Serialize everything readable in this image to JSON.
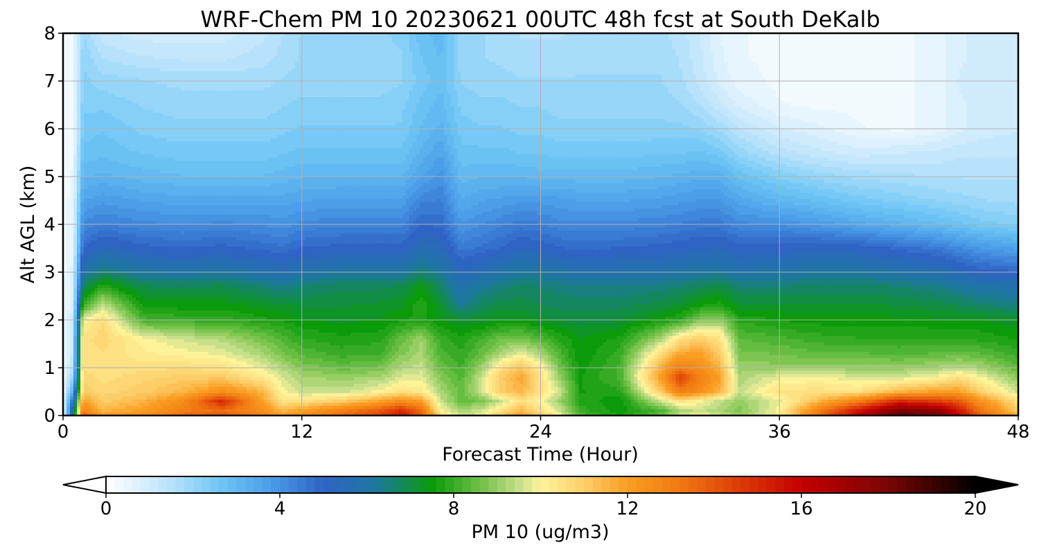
{
  "chart_data": {
    "type": "heatmap",
    "title": "WRF-Chem PM 10  20230621 00UTC 48h fcst at South DeKalb",
    "xlabel": "Forecast Time (Hour)",
    "ylabel": "Alt AGL (km)",
    "xlim": [
      0,
      48
    ],
    "ylim": [
      0,
      8
    ],
    "x_ticks": [
      "0",
      "12",
      "24",
      "36",
      "48"
    ],
    "x_tick_values": [
      0,
      12,
      24,
      36,
      48
    ],
    "y_ticks": [
      "0",
      "1",
      "2",
      "3",
      "4",
      "5",
      "6",
      "7",
      "8"
    ],
    "y_tick_values": [
      0,
      1,
      2,
      3,
      4,
      5,
      6,
      7,
      8
    ],
    "grid": true,
    "x": [
      0,
      0.5,
      1,
      2,
      4,
      6,
      8,
      10,
      11,
      12,
      14,
      16,
      17,
      18,
      19,
      20,
      21,
      22,
      23,
      24,
      25,
      26,
      28,
      30,
      31,
      32,
      33,
      34,
      36,
      38,
      40,
      42,
      44,
      45,
      46,
      48
    ],
    "y": [
      0,
      0.1,
      0.3,
      0.5,
      0.8,
      1.0,
      1.3,
      1.6,
      2.0,
      2.3,
      2.7,
      3.0,
      3.5,
      4.0,
      4.5,
      5.0,
      5.5,
      6.0,
      6.5,
      7.0,
      7.5,
      8.0
    ],
    "z": [
      [
        0.5,
        6,
        14,
        12,
        12.5,
        13.5,
        14,
        13,
        12,
        12.5,
        13.5,
        14.5,
        15.5,
        14,
        10.5,
        9.5,
        9.8,
        11,
        12,
        11,
        10,
        8.3,
        7.6,
        8.5,
        9.5,
        10,
        9.5,
        9,
        10,
        13.5,
        16,
        18.5,
        18,
        16,
        14,
        11.5
      ],
      [
        0.5,
        6,
        13,
        11.5,
        12,
        13,
        13.5,
        12.5,
        11.5,
        12,
        13,
        14,
        15,
        13.5,
        10,
        9.2,
        9.5,
        10.5,
        11.5,
        10.5,
        9.5,
        8,
        7.5,
        8.2,
        9.2,
        9.5,
        9.2,
        8.8,
        10,
        13,
        15.5,
        18,
        17.5,
        15.5,
        13.5,
        11
      ],
      [
        0.4,
        5,
        12,
        11,
        11.5,
        12.5,
        15,
        12,
        10.5,
        10.5,
        11,
        12,
        12.5,
        12,
        9.5,
        8.5,
        8.7,
        9.5,
        10.5,
        10,
        9,
        7.8,
        7.4,
        9.5,
        10.5,
        10,
        9.5,
        9,
        9.8,
        11.5,
        13,
        15,
        14.5,
        14,
        12.5,
        10.5
      ],
      [
        0.3,
        3.5,
        11,
        10.8,
        11,
        11.5,
        12.5,
        11.5,
        10,
        9.5,
        9.5,
        10,
        10.5,
        10.3,
        9.2,
        8.5,
        9.5,
        11,
        11.5,
        10.5,
        9.5,
        7.6,
        7.8,
        11,
        13,
        12.5,
        11.5,
        9.5,
        10.5,
        10.5,
        10.5,
        11.5,
        12,
        12,
        11,
        9.5
      ],
      [
        0.3,
        2,
        10.8,
        10.5,
        10.8,
        11,
        11,
        10.3,
        9.7,
        9.2,
        9,
        9.2,
        9.7,
        9.8,
        8.8,
        8.3,
        9.5,
        11,
        11.8,
        10.5,
        9,
        7.6,
        8.2,
        12,
        14.5,
        13,
        12,
        9.2,
        9.8,
        10,
        9.6,
        9.6,
        10,
        10.5,
        10,
        8.9
      ],
      [
        0.3,
        1.5,
        10.5,
        10.5,
        10.5,
        10.6,
        10.5,
        9.8,
        9.3,
        8.8,
        8.5,
        8.7,
        9.3,
        9.5,
        8.5,
        8.1,
        9,
        10.5,
        11.2,
        10.2,
        8.6,
        7.5,
        8.2,
        11.5,
        13,
        12.5,
        11.5,
        9,
        9,
        9,
        9,
        9,
        9.2,
        9.4,
        9.2,
        8.4
      ],
      [
        0.3,
        1.2,
        10.5,
        10.6,
        10.2,
        10,
        9.8,
        9.2,
        8.7,
        8.3,
        8,
        8.1,
        8.8,
        9.2,
        8.2,
        7.9,
        8.5,
        9.2,
        9.8,
        9.2,
        8.2,
        7.4,
        8,
        10.5,
        11.8,
        12,
        11,
        8.7,
        8.6,
        8.4,
        8.4,
        8.3,
        8.4,
        8.5,
        8.4,
        8
      ],
      [
        0.3,
        1.1,
        10.5,
        10.8,
        10,
        9.6,
        9.3,
        8.7,
        8.3,
        7.9,
        7.7,
        7.8,
        8.5,
        9.1,
        8,
        7.7,
        8.1,
        8.6,
        8.7,
        8.3,
        7.8,
        7.4,
        7.7,
        9.2,
        10.5,
        11,
        10.5,
        8.4,
        8.2,
        8,
        7.9,
        7.9,
        7.9,
        7.9,
        7.8,
        7.6
      ],
      [
        0.3,
        1,
        10,
        10.6,
        8.2,
        8,
        8,
        7.7,
        7.6,
        7.4,
        7.3,
        7.4,
        7.6,
        7.7,
        7.4,
        7.2,
        7.2,
        7.4,
        7.4,
        7.2,
        7.1,
        7,
        7.1,
        7.6,
        7.9,
        8.8,
        9,
        7.8,
        7.6,
        7.5,
        7.5,
        7.5,
        7.4,
        7.4,
        7.4,
        7.2
      ],
      [
        0.3,
        0.9,
        8,
        9.5,
        7.6,
        7.5,
        7.5,
        7.3,
        7.2,
        7.1,
        7.1,
        7.2,
        7.3,
        7.8,
        7.2,
        6.3,
        6.8,
        7,
        7,
        6.9,
        6.8,
        6.8,
        6.8,
        7,
        7.2,
        7.6,
        7.8,
        7.2,
        7.2,
        7.2,
        7.2,
        7.1,
        7,
        6.9,
        6.7,
        6.5
      ],
      [
        0.3,
        0.8,
        6.8,
        7.8,
        6.9,
        6.8,
        6.9,
        6.6,
        6.4,
        6.6,
        6.8,
        6.8,
        6.9,
        7.4,
        6.7,
        5.8,
        6.2,
        6.5,
        6.7,
        6.6,
        6.5,
        6.4,
        6.4,
        6.5,
        6.6,
        6.8,
        7,
        6.6,
        6.6,
        6.7,
        6.7,
        6.6,
        6.4,
        6.2,
        6,
        5.8
      ],
      [
        0.3,
        0.7,
        6,
        6.6,
        6.1,
        6,
        6.1,
        5.8,
        5.6,
        5.9,
        6.1,
        6.1,
        6.1,
        6.6,
        6.2,
        5.3,
        5.6,
        5.9,
        6.2,
        6.1,
        6,
        5.8,
        5.8,
        5.9,
        6,
        6.1,
        6.2,
        5.9,
        6,
        6.1,
        6.1,
        5.9,
        5.7,
        5.4,
        5.1,
        4.9
      ],
      [
        0.3,
        0.6,
        4.8,
        5.4,
        5,
        4.9,
        5,
        4.8,
        4.7,
        4.9,
        5,
        5,
        5,
        5.6,
        5.4,
        4.5,
        4.7,
        4.9,
        5.2,
        5.1,
        4.9,
        4.8,
        4.9,
        5,
        5.1,
        5.2,
        5.3,
        5,
        5.1,
        5.2,
        5.1,
        4.8,
        4.5,
        4.2,
        3.9,
        3.6
      ],
      [
        0.3,
        0.5,
        4.2,
        4.4,
        4.2,
        4.1,
        4.2,
        4.1,
        4,
        4.2,
        4.3,
        4.3,
        4.3,
        4.9,
        4.8,
        3.9,
        4.1,
        4.3,
        4.5,
        4.4,
        4.2,
        4.2,
        4.2,
        4.3,
        4.4,
        4.5,
        4.5,
        4.2,
        4.1,
        3.8,
        3.5,
        3.2,
        2.9,
        2.7,
        2.5,
        2.3
      ],
      [
        0.3,
        0.45,
        3.6,
        3.8,
        3.6,
        3.5,
        3.5,
        3.5,
        3.5,
        3.6,
        3.7,
        3.7,
        3.7,
        4.3,
        4.4,
        3.4,
        3.6,
        3.7,
        3.8,
        3.8,
        3.7,
        3.6,
        3.6,
        3.7,
        3.8,
        3.9,
        3.9,
        3.5,
        3.1,
        2.8,
        2.5,
        2.3,
        2.1,
        2,
        1.9,
        1.8
      ],
      [
        0.3,
        0.4,
        3.1,
        3.2,
        3,
        2.9,
        2.9,
        2.9,
        3,
        3.1,
        3.1,
        3.1,
        3.1,
        3.6,
        4,
        3,
        3.1,
        3.1,
        3.1,
        3,
        3,
        3,
        3,
        3.1,
        3.2,
        3.3,
        3.3,
        2.8,
        2.3,
        2,
        1.8,
        1.7,
        1.6,
        1.6,
        1.6,
        1.6
      ],
      [
        0.3,
        0.35,
        2.7,
        2.8,
        2.6,
        2.5,
        2.5,
        2.5,
        2.6,
        2.7,
        2.7,
        2.7,
        2.7,
        3.2,
        3.6,
        2.7,
        2.7,
        2.7,
        2.6,
        2.6,
        2.5,
        2.5,
        2.5,
        2.6,
        2.6,
        2.7,
        2.5,
        2,
        1.5,
        1.2,
        1,
        1.1,
        1.2,
        1.3,
        1.3,
        1.3
      ],
      [
        0.3,
        0.3,
        2.5,
        2.6,
        2.3,
        2.2,
        2.2,
        2.2,
        2.3,
        2.4,
        2.4,
        2.4,
        2.4,
        2.9,
        3.2,
        2.5,
        2.4,
        2.4,
        2.3,
        2.3,
        2.2,
        2.2,
        2.2,
        2.2,
        2.2,
        2.1,
        1.8,
        1.4,
        0.9,
        0.7,
        0.4,
        0.3,
        0.5,
        0.8,
        1,
        1.1
      ],
      [
        0.3,
        0.3,
        2.3,
        2.3,
        2.1,
        2,
        2,
        2,
        2.1,
        2.2,
        2.2,
        2.2,
        2.3,
        2.7,
        3,
        2.3,
        2.2,
        2.2,
        2.1,
        2.1,
        2,
        2,
        2,
        2,
        1.9,
        1.6,
        1.2,
        0.8,
        0.4,
        0.3,
        0.3,
        0.3,
        0.5,
        0.8,
        1,
        1
      ],
      [
        0.3,
        0.3,
        2.2,
        2,
        1.9,
        1.8,
        1.8,
        1.8,
        1.9,
        2,
        2,
        2,
        2.1,
        2.5,
        2.8,
        2.1,
        2,
        2,
        1.9,
        1.9,
        1.9,
        1.9,
        1.9,
        1.9,
        1.7,
        1.3,
        0.8,
        0.5,
        0.3,
        0.2,
        0.2,
        0.3,
        0.5,
        0.9,
        1.1,
        1.1
      ],
      [
        0.3,
        0.3,
        2.1,
        1.6,
        1.4,
        1.3,
        1.3,
        1.5,
        1.7,
        1.9,
        2,
        2,
        2.1,
        2.6,
        2.9,
        2,
        1.9,
        1.8,
        1.7,
        1.7,
        1.7,
        1.8,
        1.8,
        1.8,
        1.6,
        1.2,
        0.7,
        0.4,
        0.3,
        0.2,
        0.2,
        0.3,
        0.5,
        0.8,
        1,
        1
      ],
      [
        0.3,
        0.3,
        1.9,
        1.2,
        1,
        1,
        1,
        1.3,
        1.6,
        1.9,
        2,
        2.1,
        2.2,
        2.8,
        3,
        2,
        1.9,
        1.8,
        1.6,
        1.6,
        1.6,
        1.7,
        1.7,
        1.7,
        1.5,
        1.1,
        0.6,
        0.4,
        0.3,
        0.2,
        0.2,
        0.3,
        0.5,
        0.8,
        1,
        1
      ]
    ],
    "colorbar": {
      "label": "PM 10  (ug/m3)",
      "min": 0,
      "max": 20,
      "ticks": [
        "0",
        "4",
        "8",
        "12",
        "16",
        "20"
      ],
      "tick_values": [
        0,
        4,
        8,
        12,
        16,
        20
      ],
      "extend": "both",
      "color_stops": [
        {
          "v": 0,
          "c": "#ffffff"
        },
        {
          "v": 1.5,
          "c": "#b8e2fb"
        },
        {
          "v": 2.6,
          "c": "#6fc7f5"
        },
        {
          "v": 3.8,
          "c": "#4a9ce8"
        },
        {
          "v": 5.0,
          "c": "#2f63c5"
        },
        {
          "v": 6.2,
          "c": "#1d78a0"
        },
        {
          "v": 7.5,
          "c": "#0a9a0a"
        },
        {
          "v": 8.6,
          "c": "#6ec046"
        },
        {
          "v": 9.5,
          "c": "#c7df8a"
        },
        {
          "v": 10.0,
          "c": "#fff39a"
        },
        {
          "v": 11.0,
          "c": "#fcce6a"
        },
        {
          "v": 12.0,
          "c": "#fa9d22"
        },
        {
          "v": 13.2,
          "c": "#f17a12"
        },
        {
          "v": 14.6,
          "c": "#dd3a08"
        },
        {
          "v": 16.0,
          "c": "#c40000"
        },
        {
          "v": 18.0,
          "c": "#7a0505"
        },
        {
          "v": 20.0,
          "c": "#000000"
        }
      ]
    }
  }
}
